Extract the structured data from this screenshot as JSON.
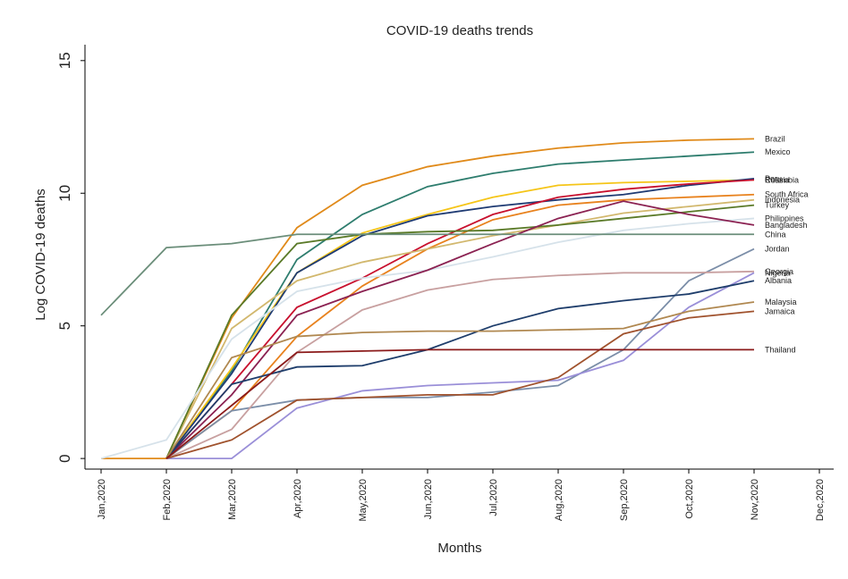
{
  "chart_data": {
    "type": "line",
    "title": "COVID-19 deaths trends",
    "x_label": "Months",
    "y_label": "Log COVID-19 deaths",
    "categories": [
      "Jan,2020",
      "Feb,2020",
      "Mar,2020",
      "Apr,2020",
      "May,2020",
      "Jun,2020",
      "Jul,2020",
      "Aug,2020",
      "Sep,2020",
      "Oct,2020",
      "Nov,2020",
      "Dec,2020"
    ],
    "ylim": [
      -0.4,
      15.6
    ],
    "yticks": [
      0,
      5,
      10,
      15
    ],
    "series": [
      {
        "name": "Brazil",
        "color": "#e08a1a",
        "values": [
          0,
          0,
          5.3,
          8.7,
          10.3,
          11.0,
          11.4,
          11.7,
          11.9,
          12.0,
          12.05,
          null
        ]
      },
      {
        "name": "Mexico",
        "color": "#2e7d6e",
        "values": [
          null,
          0,
          3.3,
          7.5,
          9.2,
          10.25,
          10.75,
          11.1,
          11.25,
          11.4,
          11.55,
          null
        ]
      },
      {
        "name": "Russia",
        "color": "#f5c518",
        "values": [
          null,
          0,
          3.4,
          7.0,
          8.5,
          9.2,
          9.85,
          10.3,
          10.4,
          10.45,
          10.5,
          null
        ]
      },
      {
        "name": "Peru",
        "color": "#1f3b73",
        "values": [
          null,
          0,
          3.2,
          7.0,
          8.4,
          9.15,
          9.5,
          9.75,
          9.95,
          10.3,
          10.55,
          null
        ]
      },
      {
        "name": "Colombia",
        "color": "#c8102e",
        "values": [
          null,
          0,
          2.8,
          5.7,
          6.8,
          8.1,
          9.2,
          9.85,
          10.15,
          10.35,
          10.5,
          null
        ]
      },
      {
        "name": "South Africa",
        "color": "#e8821e",
        "values": [
          null,
          0,
          1.8,
          4.6,
          6.5,
          7.9,
          9.0,
          9.55,
          9.75,
          9.85,
          9.95,
          null
        ]
      },
      {
        "name": "Indonesia",
        "color": "#d2b86e",
        "values": [
          null,
          0,
          4.9,
          6.7,
          7.4,
          7.9,
          8.4,
          8.8,
          9.25,
          9.5,
          9.75,
          null
        ]
      },
      {
        "name": "Turkey",
        "color": "#5a7a28",
        "values": [
          null,
          0,
          5.4,
          8.1,
          8.45,
          8.55,
          8.6,
          8.8,
          9.05,
          9.3,
          9.55,
          null
        ]
      },
      {
        "name": "Philippines",
        "color": "#d6e2ea",
        "values": [
          0,
          0.7,
          4.5,
          6.3,
          6.8,
          7.1,
          7.6,
          8.15,
          8.6,
          8.85,
          9.05,
          null
        ]
      },
      {
        "name": "Bangladesh",
        "color": "#8b2252",
        "values": [
          null,
          0,
          2.4,
          5.4,
          6.3,
          7.1,
          8.1,
          9.05,
          9.7,
          9.2,
          8.8,
          null
        ]
      },
      {
        "name": "China",
        "color": "#6b8e7a",
        "values": [
          5.4,
          7.95,
          8.1,
          8.45,
          8.45,
          8.45,
          8.45,
          8.45,
          8.45,
          8.45,
          8.45,
          null
        ]
      },
      {
        "name": "Jordan",
        "color": "#7b8ea8",
        "values": [
          null,
          0,
          1.8,
          2.2,
          2.3,
          2.3,
          2.5,
          2.75,
          4.1,
          6.7,
          7.9,
          null
        ]
      },
      {
        "name": "Georgia",
        "color": "#c8a0a0",
        "values": [
          null,
          0,
          1.1,
          4.0,
          5.6,
          6.35,
          6.75,
          6.9,
          7.0,
          7.0,
          7.05,
          null
        ]
      },
      {
        "name": "Nigeria",
        "color": "#9a8fd8",
        "values": [
          null,
          0,
          0,
          1.9,
          2.55,
          2.75,
          2.85,
          2.95,
          3.7,
          5.7,
          7.0,
          null
        ]
      },
      {
        "name": "Albania",
        "color": "#1e3d6b",
        "values": [
          null,
          0,
          2.8,
          3.45,
          3.5,
          4.1,
          5.0,
          5.65,
          5.95,
          6.2,
          6.7,
          null
        ]
      },
      {
        "name": "Malaysia",
        "color": "#b08850",
        "values": [
          null,
          0,
          3.8,
          4.6,
          4.75,
          4.8,
          4.8,
          4.85,
          4.9,
          5.55,
          5.9,
          null
        ]
      },
      {
        "name": "Jamaica",
        "color": "#a0522d",
        "values": [
          null,
          0,
          0.7,
          2.2,
          2.3,
          2.4,
          2.4,
          3.05,
          4.7,
          5.3,
          5.55,
          null
        ]
      },
      {
        "name": "Thailand",
        "color": "#8b1a1a",
        "values": [
          null,
          0,
          2.0,
          4.0,
          4.05,
          4.1,
          4.1,
          4.1,
          4.1,
          4.1,
          4.1,
          null
        ]
      }
    ]
  }
}
